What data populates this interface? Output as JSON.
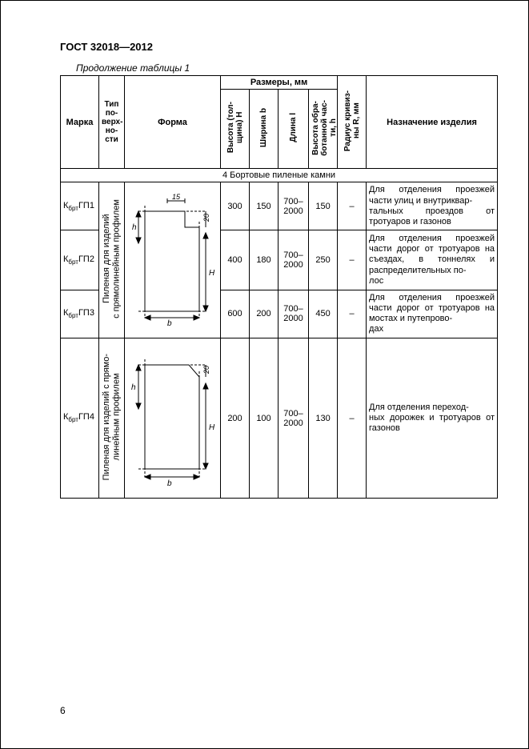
{
  "gost_header": "ГОСТ 32018—2012",
  "table_caption": "Продолжение таблицы 1",
  "page_number": "6",
  "headers": {
    "marka": "Марка",
    "tip": "Тип по-\nверх-\nно-\nсти",
    "forma": "Форма",
    "razmery": "Размеры, мм",
    "h_thick": "Высота (тол-\nщина) H",
    "width_b": "Ширина b",
    "length_l": "Длина l",
    "h_work": "Высота обра-\nботанной час-\nти, h",
    "radius": "Радиус кривиз-\nны R, мм",
    "purpose": "Назначение изделия"
  },
  "section_title": "4  Бортовые пиленые камни",
  "surface_group1": "Пиленая для изделий\nс прямолинейным профилем",
  "surface_group2": "Пиленая для изделий с прямо-\nлинейным профилем",
  "rows": [
    {
      "mark_prefix": "К",
      "mark_sub": "брт",
      "mark_suffix": "ГП1",
      "H": "300",
      "b": "150",
      "l": "700–\n2000",
      "h": "150",
      "R": "–",
      "purpose": "Для отделения проезжей части улиц и внутриквар-\nтальных проездов от тротуаров и газонов"
    },
    {
      "mark_prefix": "К",
      "mark_sub": "брт",
      "mark_suffix": "ГП2",
      "H": "400",
      "b": "180",
      "l": "700–\n2000",
      "h": "250",
      "R": "–",
      "purpose": "Для отделения проезжей части дорог от тротуаров на съездах, в тоннелях и распределительных по-\nлос"
    },
    {
      "mark_prefix": "К",
      "mark_sub": "брт",
      "mark_suffix": "ГП3",
      "H": "600",
      "b": "200",
      "l": "700–\n2000",
      "h": "450",
      "R": "–",
      "purpose": "Для отделения проезжей части дорог от тротуаров на мостах и путепрово-\nдах"
    },
    {
      "mark_prefix": "К",
      "mark_sub": "брт",
      "mark_suffix": "ГП4",
      "H": "200",
      "b": "100",
      "l": "700–\n2000",
      "h": "130",
      "R": "–",
      "purpose": "Для отделения переход-\nных дорожек и тротуаров от газонов"
    }
  ],
  "diagram": {
    "label_15": "15",
    "label_20": "20",
    "label_b": "b",
    "label_h": "h",
    "label_H": "H"
  }
}
